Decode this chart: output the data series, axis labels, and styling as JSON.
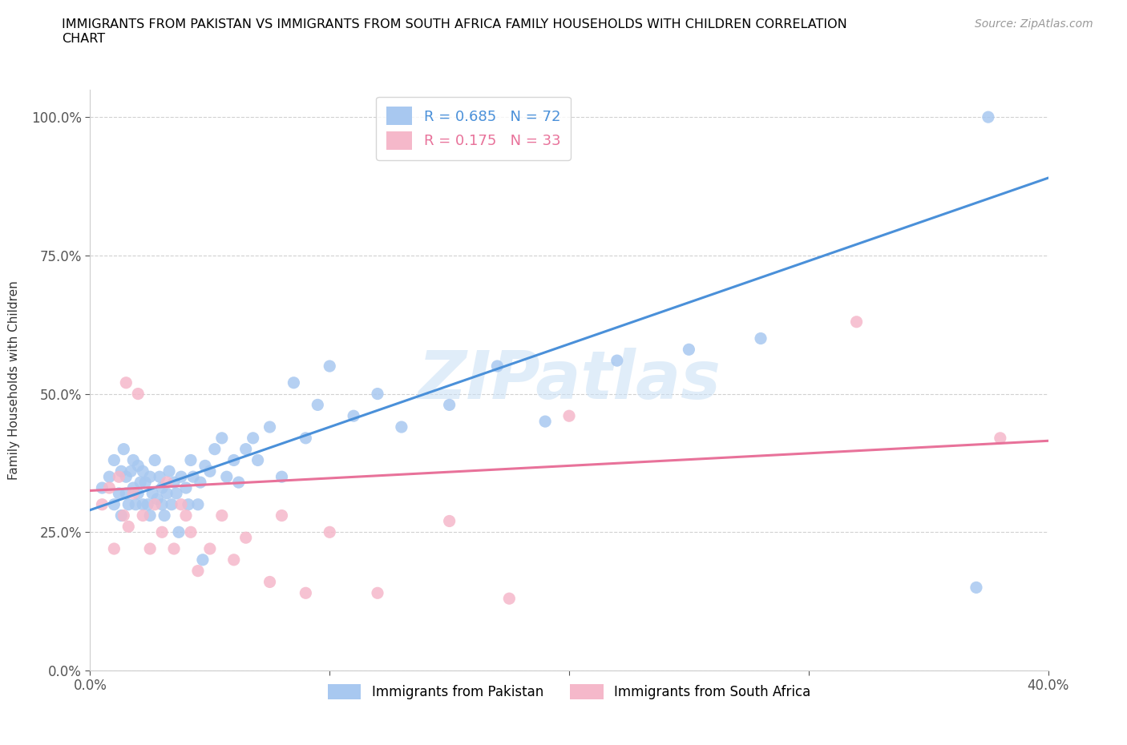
{
  "title": "IMMIGRANTS FROM PAKISTAN VS IMMIGRANTS FROM SOUTH AFRICA FAMILY HOUSEHOLDS WITH CHILDREN CORRELATION\nCHART",
  "source": "Source: ZipAtlas.com",
  "ylabel": "Family Households with Children",
  "xlim": [
    0.0,
    0.4
  ],
  "ylim": [
    0.0,
    1.05
  ],
  "yticks": [
    0.0,
    0.25,
    0.5,
    0.75,
    1.0
  ],
  "ytick_labels": [
    "0.0%",
    "25.0%",
    "50.0%",
    "75.0%",
    "100.0%"
  ],
  "xticks": [
    0.0,
    0.1,
    0.2,
    0.3,
    0.4
  ],
  "xtick_labels": [
    "0.0%",
    "",
    "",
    "",
    "40.0%"
  ],
  "pakistan_R": 0.685,
  "pakistan_N": 72,
  "sa_R": 0.175,
  "sa_N": 33,
  "pakistan_color": "#A8C8F0",
  "sa_color": "#F5B8CA",
  "pakistan_line_color": "#4A90D9",
  "sa_line_color": "#E8729A",
  "watermark": "ZIPatlas",
  "pak_line_x0": 0.0,
  "pak_line_y0": 0.29,
  "pak_line_x1": 0.4,
  "pak_line_y1": 0.89,
  "sa_line_x0": 0.0,
  "sa_line_y0": 0.325,
  "sa_line_x1": 0.4,
  "sa_line_y1": 0.415,
  "pakistan_scatter_x": [
    0.005,
    0.008,
    0.01,
    0.01,
    0.012,
    0.013,
    0.013,
    0.014,
    0.015,
    0.015,
    0.016,
    0.017,
    0.018,
    0.018,
    0.019,
    0.02,
    0.02,
    0.021,
    0.022,
    0.022,
    0.023,
    0.024,
    0.025,
    0.025,
    0.026,
    0.027,
    0.028,
    0.029,
    0.03,
    0.03,
    0.031,
    0.032,
    0.033,
    0.034,
    0.035,
    0.036,
    0.037,
    0.038,
    0.04,
    0.041,
    0.042,
    0.043,
    0.045,
    0.046,
    0.047,
    0.048,
    0.05,
    0.052,
    0.055,
    0.057,
    0.06,
    0.062,
    0.065,
    0.068,
    0.07,
    0.075,
    0.08,
    0.085,
    0.09,
    0.095,
    0.1,
    0.11,
    0.12,
    0.13,
    0.15,
    0.17,
    0.19,
    0.22,
    0.25,
    0.28,
    0.37,
    0.375
  ],
  "pakistan_scatter_y": [
    0.33,
    0.35,
    0.3,
    0.38,
    0.32,
    0.28,
    0.36,
    0.4,
    0.32,
    0.35,
    0.3,
    0.36,
    0.33,
    0.38,
    0.3,
    0.32,
    0.37,
    0.34,
    0.3,
    0.36,
    0.34,
    0.3,
    0.28,
    0.35,
    0.32,
    0.38,
    0.31,
    0.35,
    0.3,
    0.33,
    0.28,
    0.32,
    0.36,
    0.3,
    0.34,
    0.32,
    0.25,
    0.35,
    0.33,
    0.3,
    0.38,
    0.35,
    0.3,
    0.34,
    0.2,
    0.37,
    0.36,
    0.4,
    0.42,
    0.35,
    0.38,
    0.34,
    0.4,
    0.42,
    0.38,
    0.44,
    0.35,
    0.52,
    0.42,
    0.48,
    0.55,
    0.46,
    0.5,
    0.44,
    0.48,
    0.55,
    0.45,
    0.56,
    0.58,
    0.6,
    0.15,
    1.0
  ],
  "sa_scatter_x": [
    0.005,
    0.008,
    0.01,
    0.012,
    0.014,
    0.015,
    0.016,
    0.018,
    0.02,
    0.022,
    0.025,
    0.027,
    0.03,
    0.032,
    0.035,
    0.038,
    0.04,
    0.042,
    0.045,
    0.05,
    0.055,
    0.06,
    0.065,
    0.075,
    0.08,
    0.09,
    0.1,
    0.12,
    0.15,
    0.175,
    0.2,
    0.32,
    0.38
  ],
  "sa_scatter_y": [
    0.3,
    0.33,
    0.22,
    0.35,
    0.28,
    0.52,
    0.26,
    0.32,
    0.5,
    0.28,
    0.22,
    0.3,
    0.25,
    0.34,
    0.22,
    0.3,
    0.28,
    0.25,
    0.18,
    0.22,
    0.28,
    0.2,
    0.24,
    0.16,
    0.28,
    0.14,
    0.25,
    0.14,
    0.27,
    0.13,
    0.46,
    0.63,
    0.42
  ]
}
